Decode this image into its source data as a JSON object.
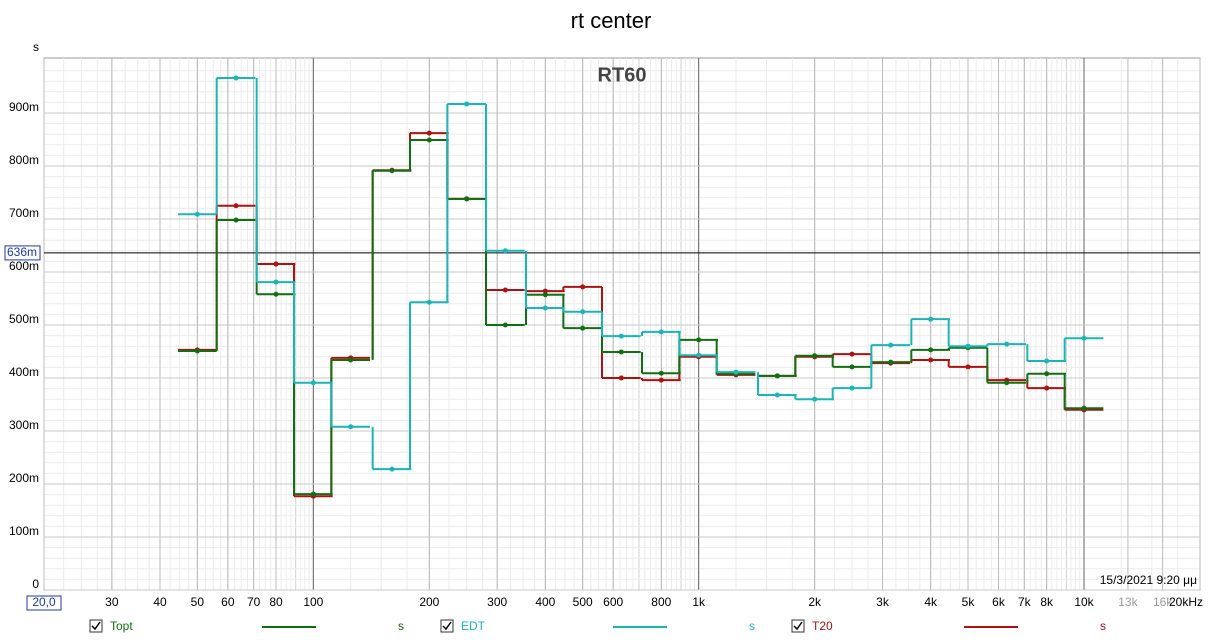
{
  "chart_data": {
    "type": "step",
    "title": "rt center",
    "subtitle": "RT60",
    "ylabel": "s",
    "timestamp": "15/3/2021 9:20 μμ",
    "xscale": "log",
    "xlim": [
      20,
      20000
    ],
    "ylim": [
      0,
      1.0
    ],
    "grid": true,
    "xticks": [
      {
        "value": 20,
        "label": "20,0"
      },
      30,
      40,
      50,
      60,
      70,
      80,
      100,
      200,
      300,
      400,
      500,
      600,
      800,
      {
        "value": 1000,
        "label": "1k"
      },
      {
        "value": 2000,
        "label": "2k"
      },
      {
        "value": 3000,
        "label": "3k"
      },
      {
        "value": 4000,
        "label": "4k"
      },
      {
        "value": 5000,
        "label": "5k"
      },
      {
        "value": 6000,
        "label": "6k"
      },
      {
        "value": 7000,
        "label": "7k"
      },
      {
        "value": 8000,
        "label": "8k"
      },
      {
        "value": 10000,
        "label": "10k"
      },
      {
        "value": 13000,
        "label": "13k"
      },
      {
        "value": 16000,
        "label": "16k"
      },
      {
        "value": 20000,
        "label": "20kHz"
      }
    ],
    "yticks": [
      0,
      {
        "value": 0.1,
        "label": "100m"
      },
      {
        "value": 0.2,
        "label": "200m"
      },
      {
        "value": 0.3,
        "label": "300m"
      },
      {
        "value": 0.4,
        "label": "400m"
      },
      {
        "value": 0.5,
        "label": "500m"
      },
      {
        "value": 0.6,
        "label": "600m"
      },
      {
        "value": 0.7,
        "label": "700m"
      },
      {
        "value": 0.8,
        "label": "800m"
      },
      {
        "value": 0.9,
        "label": "900m"
      }
    ],
    "cursor": {
      "value": 0.636,
      "label": "636m"
    },
    "x": [
      50,
      63,
      80,
      100,
      125,
      160,
      200,
      250,
      315,
      400,
      500,
      630,
      800,
      1000,
      1250,
      1600,
      2000,
      2500,
      3150,
      4000,
      5000,
      6300,
      8000,
      10000
    ],
    "series": [
      {
        "name": "Topt",
        "unit": "s",
        "color": "#107010",
        "values": [
          0.451,
          0.698,
          0.558,
          0.181,
          0.434,
          0.791,
          0.849,
          0.738,
          0.5,
          0.557,
          0.494,
          0.449,
          0.409,
          0.472,
          0.408,
          0.404,
          0.442,
          0.421,
          0.43,
          0.453,
          0.457,
          0.391,
          0.408,
          0.343
        ]
      },
      {
        "name": "EDT",
        "unit": "s",
        "color": "#1ab5b5",
        "values": [
          0.709,
          0.966,
          0.581,
          0.391,
          0.308,
          0.228,
          0.543,
          0.917,
          0.64,
          0.532,
          0.525,
          0.479,
          0.487,
          0.443,
          0.411,
          0.368,
          0.36,
          0.381,
          0.462,
          0.511,
          0.46,
          0.464,
          0.432,
          0.475
        ]
      },
      {
        "name": "T20",
        "unit": "s",
        "color": "#b01010",
        "values": [
          0.453,
          0.725,
          0.615,
          0.177,
          0.438,
          0.792,
          0.862,
          0.738,
          0.566,
          0.564,
          0.572,
          0.4,
          0.396,
          0.44,
          0.406,
          0.404,
          0.44,
          0.445,
          0.428,
          0.434,
          0.421,
          0.396,
          0.381,
          0.34
        ]
      }
    ]
  }
}
